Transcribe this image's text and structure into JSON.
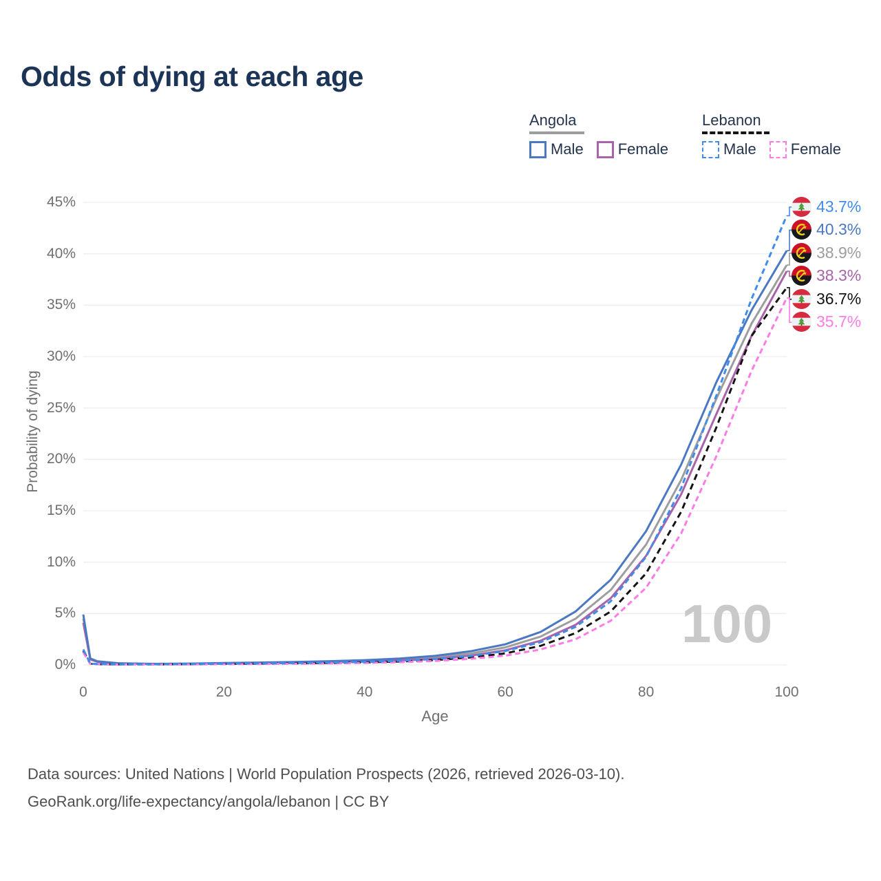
{
  "title": "Odds of dying at each age",
  "watermark": "100",
  "legend": {
    "groups": [
      {
        "label": "Angola",
        "line_style": "solid",
        "line_color": "#9d9d9d",
        "items": [
          {
            "label": "Male",
            "color": "#4a78c2",
            "dashed": false
          },
          {
            "label": "Female",
            "color": "#a963a9",
            "dashed": false
          }
        ]
      },
      {
        "label": "Lebanon",
        "line_style": "dashed",
        "line_color": "#151515",
        "items": [
          {
            "label": "Male",
            "color": "#3f8ceb",
            "dashed": true
          },
          {
            "label": "Female",
            "color": "#fb7de4",
            "dashed": true
          }
        ]
      }
    ]
  },
  "chart_data": {
    "type": "line",
    "title": "Odds of dying at each age",
    "xlabel": "Age",
    "ylabel": "Probability of dying",
    "xlim": [
      0,
      100
    ],
    "ylim": [
      0,
      45
    ],
    "grid": "horizontal-only",
    "legend_position": "top-right",
    "x_ticks": [
      0,
      20,
      40,
      60,
      80,
      100
    ],
    "y_ticks": [
      "0%",
      "5%",
      "10%",
      "15%",
      "20%",
      "25%",
      "30%",
      "35%",
      "40%",
      "45%"
    ],
    "x": [
      0,
      1,
      2,
      5,
      10,
      15,
      20,
      25,
      30,
      35,
      40,
      45,
      50,
      55,
      60,
      65,
      70,
      75,
      80,
      85,
      90,
      95,
      100
    ],
    "series": [
      {
        "name": "Angola Both sexes",
        "country": "angola",
        "sex": "both",
        "color": "#9d9d9d",
        "dashed": false,
        "end_label": "38.9%",
        "end_value": 38.9,
        "flag": "angola",
        "values": [
          4.5,
          0.57,
          0.33,
          0.15,
          0.09,
          0.11,
          0.15,
          0.19,
          0.24,
          0.3,
          0.39,
          0.52,
          0.74,
          1.1,
          1.7,
          2.75,
          4.5,
          7.3,
          11.7,
          18.0,
          25.9,
          33.2,
          38.9
        ]
      },
      {
        "name": "Angola Female",
        "country": "angola",
        "sex": "female",
        "color": "#a963a9",
        "dashed": false,
        "end_label": "38.3%",
        "end_value": 38.3,
        "flag": "angola",
        "values": [
          4.1,
          0.52,
          0.3,
          0.14,
          0.08,
          0.09,
          0.11,
          0.14,
          0.18,
          0.24,
          0.31,
          0.42,
          0.6,
          0.9,
          1.42,
          2.35,
          3.9,
          6.5,
          10.6,
          16.6,
          24.4,
          32.0,
          38.3
        ]
      },
      {
        "name": "Angola Male",
        "country": "angola",
        "sex": "male",
        "color": "#4a78c2",
        "dashed": false,
        "end_label": "40.3%",
        "end_value": 40.3,
        "flag": "angola",
        "values": [
          4.9,
          0.62,
          0.35,
          0.16,
          0.1,
          0.13,
          0.18,
          0.23,
          0.29,
          0.36,
          0.46,
          0.62,
          0.88,
          1.32,
          2.0,
          3.2,
          5.2,
          8.3,
          13.0,
          19.5,
          27.5,
          34.5,
          40.3
        ]
      },
      {
        "name": "Lebanon Both sexes",
        "country": "lebanon",
        "sex": "both",
        "color": "#141414",
        "dashed": true,
        "dash": "9 6",
        "end_label": "36.7%",
        "end_value": 36.7,
        "flag": "lebanon",
        "values": [
          1.35,
          0.11,
          0.07,
          0.045,
          0.045,
          0.065,
          0.095,
          0.12,
          0.15,
          0.18,
          0.24,
          0.33,
          0.47,
          0.72,
          1.12,
          1.85,
          3.1,
          5.2,
          8.9,
          14.9,
          23.1,
          32.0,
          36.7
        ]
      },
      {
        "name": "Lebanon Female",
        "country": "lebanon",
        "sex": "female",
        "color": "#fb7de4",
        "dashed": true,
        "dash": "8 5",
        "end_label": "35.7%",
        "end_value": 35.7,
        "flag": "lebanon",
        "values": [
          1.2,
          0.1,
          0.06,
          0.04,
          0.04,
          0.05,
          0.07,
          0.09,
          0.11,
          0.14,
          0.19,
          0.26,
          0.38,
          0.58,
          0.9,
          1.5,
          2.5,
          4.3,
          7.5,
          12.8,
          20.3,
          28.6,
          35.7
        ]
      },
      {
        "name": "Lebanon Male",
        "country": "lebanon",
        "sex": "male",
        "color": "#3f8ceb",
        "dashed": true,
        "dash": "8 5",
        "end_label": "43.7%",
        "end_value": 43.7,
        "flag": "lebanon",
        "values": [
          1.5,
          0.12,
          0.08,
          0.05,
          0.05,
          0.08,
          0.12,
          0.15,
          0.18,
          0.22,
          0.29,
          0.4,
          0.57,
          0.86,
          1.35,
          2.2,
          3.7,
          6.2,
          10.5,
          17.2,
          26.2,
          35.6,
          43.7
        ]
      }
    ]
  },
  "footer": {
    "line1": "Data sources: United Nations | World Population Prospects (2026, retrieved 2026-03-10).",
    "line2": "GeoRank.org/life-expectancy/angola/lebanon | CC BY"
  }
}
